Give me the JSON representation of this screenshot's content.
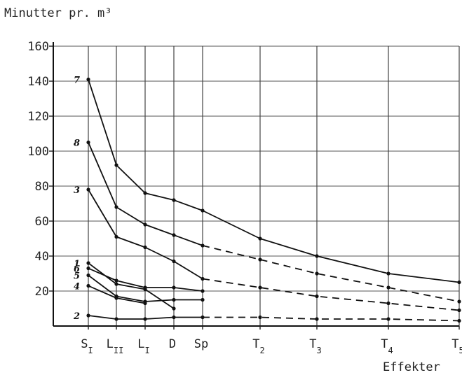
{
  "chart_data": {
    "type": "line",
    "ylabel": "Minutter pr. m³",
    "xlabel": "Effekter",
    "ylim": [
      0,
      160
    ],
    "yticks": [
      20,
      40,
      60,
      80,
      100,
      120,
      140,
      160
    ],
    "grid": true,
    "categories": [
      {
        "main": "S",
        "sub": "I"
      },
      {
        "main": "L",
        "sub": "II"
      },
      {
        "main": "L",
        "sub": "I"
      },
      {
        "main": "D",
        "sub": ""
      },
      {
        "main": "Sp",
        "sub": ""
      },
      {
        "main": "T",
        "sub": "2"
      },
      {
        "main": "T",
        "sub": "3"
      },
      {
        "main": "T",
        "sub": "4"
      },
      {
        "main": "T",
        "sub": "5"
      }
    ],
    "series": [
      {
        "name": "7",
        "solid": [
          [
            0,
            141
          ],
          [
            1,
            92
          ],
          [
            2,
            76
          ],
          [
            3,
            72
          ],
          [
            4,
            66
          ],
          [
            5,
            50
          ],
          [
            6,
            40
          ],
          [
            7,
            30
          ],
          [
            8,
            25
          ]
        ],
        "dashed": []
      },
      {
        "name": "8",
        "solid": [
          [
            0,
            105
          ],
          [
            1,
            68
          ],
          [
            2,
            58
          ],
          [
            3,
            52
          ],
          [
            4,
            46
          ]
        ],
        "dashed": [
          [
            4,
            46
          ],
          [
            5,
            38
          ],
          [
            6,
            30
          ],
          [
            7,
            22
          ],
          [
            8,
            14
          ]
        ]
      },
      {
        "name": "3",
        "solid": [
          [
            0,
            78
          ],
          [
            1,
            51
          ],
          [
            2,
            45
          ],
          [
            3,
            37
          ],
          [
            4,
            27
          ]
        ],
        "dashed": [
          [
            4,
            27
          ],
          [
            5,
            22
          ],
          [
            6,
            17
          ],
          [
            7,
            13
          ],
          [
            8,
            9
          ]
        ]
      },
      {
        "name": "1",
        "solid": [
          [
            0,
            36
          ],
          [
            1,
            24
          ],
          [
            2,
            21
          ],
          [
            3,
            10
          ]
        ],
        "dashed": []
      },
      {
        "name": "6",
        "solid": [
          [
            0,
            33
          ],
          [
            1,
            26
          ],
          [
            2,
            22
          ],
          [
            3,
            22
          ],
          [
            4,
            20
          ]
        ],
        "dashed": []
      },
      {
        "name": "5",
        "solid": [
          [
            0,
            29
          ],
          [
            1,
            17
          ],
          [
            2,
            14
          ],
          [
            3,
            15
          ],
          [
            4,
            15
          ]
        ],
        "dashed": []
      },
      {
        "name": "4",
        "solid": [
          [
            0,
            23
          ],
          [
            1,
            16
          ],
          [
            2,
            13
          ]
        ],
        "dashed": []
      },
      {
        "name": "2",
        "solid": [
          [
            0,
            6
          ],
          [
            1,
            4
          ],
          [
            2,
            4
          ],
          [
            3,
            5
          ],
          [
            4,
            5
          ]
        ],
        "dashed": [
          [
            4,
            5
          ],
          [
            5,
            5
          ],
          [
            6,
            4
          ],
          [
            7,
            4
          ],
          [
            8,
            3
          ]
        ]
      }
    ]
  }
}
